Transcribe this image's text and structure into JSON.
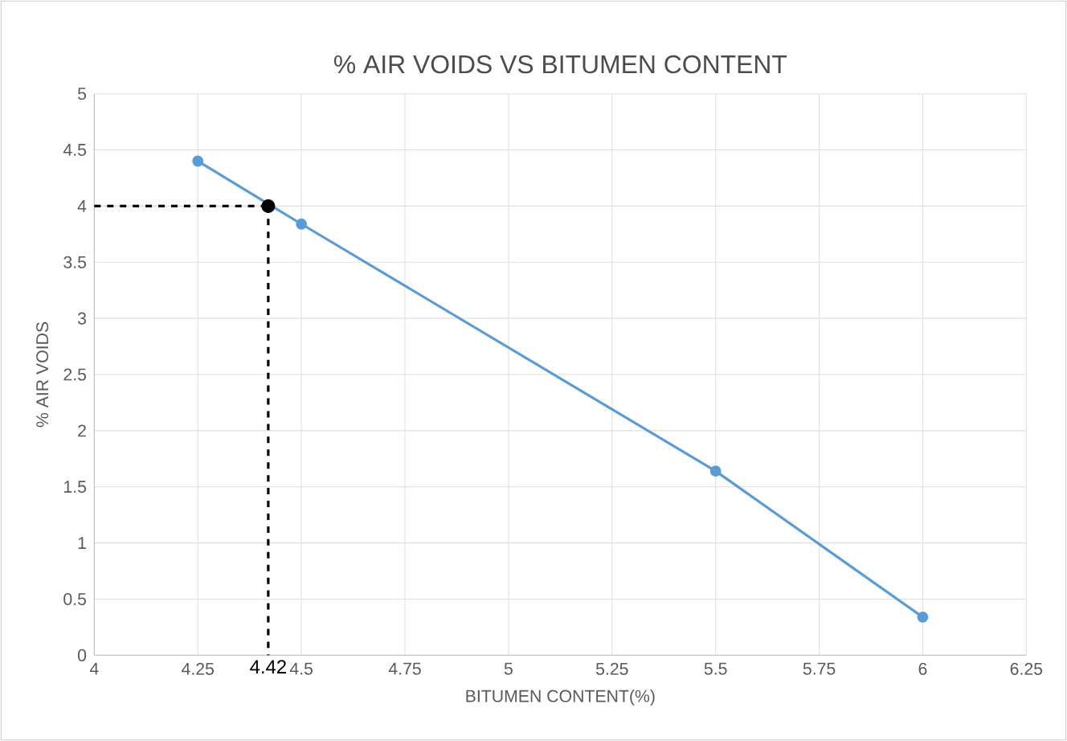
{
  "chart_data": {
    "type": "line",
    "title": "% AIR VOIDS VS BITUMEN CONTENT",
    "xlabel": "BITUMEN CONTENT(%)",
    "ylabel": "% AIR VOIDS",
    "xlim": [
      4,
      6.25
    ],
    "xticks": [
      4,
      4.25,
      4.5,
      4.75,
      5,
      5.25,
      5.5,
      5.75,
      6,
      6.25
    ],
    "ylim": [
      0,
      5
    ],
    "yticks": [
      0,
      0.5,
      1,
      1.5,
      2,
      2.5,
      3,
      3.5,
      4,
      4.5,
      5
    ],
    "grid": true,
    "marker": "circle",
    "series": [
      {
        "color": "#5b9bd5",
        "x": [
          4.25,
          4.5,
          5.5,
          6
        ],
        "values": [
          4.4,
          3.84,
          1.64,
          0.34
        ]
      },
      {
        "type": "line",
        "color": "#000000",
        "line_style": "dashed",
        "marker": "none",
        "x": [
          4,
          4.42
        ],
        "values": [
          4,
          4
        ]
      },
      {
        "type": "line",
        "color": "#000000",
        "line_style": "dashed",
        "marker": "none",
        "x": [
          4.42,
          4.42
        ],
        "values": [
          4,
          0
        ]
      },
      {
        "type": "scatter",
        "color": "#000000",
        "x": [
          4.42
        ],
        "values": [
          4
        ]
      }
    ],
    "annotations": [
      {
        "text": "4.42",
        "x": 4.42,
        "y": 0
      }
    ]
  }
}
